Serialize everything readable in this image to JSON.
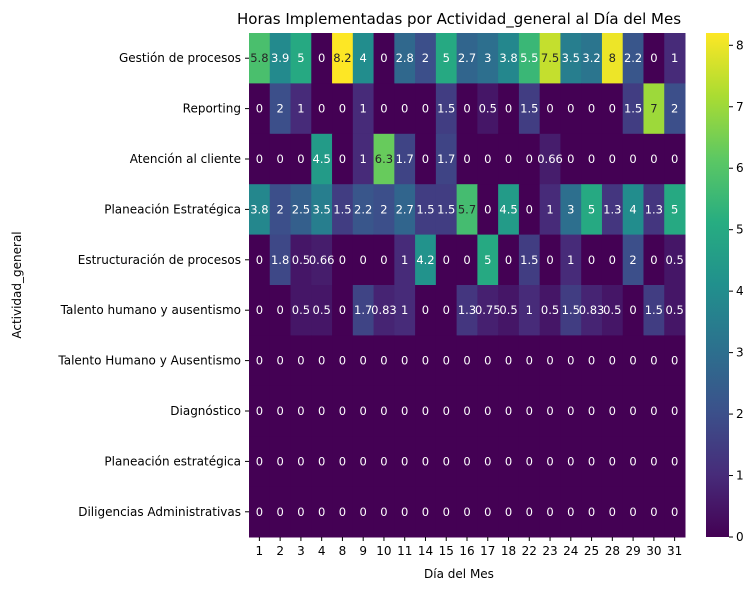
{
  "chart_data": {
    "type": "heatmap",
    "title": "Horas Implementadas por Actividad_general al Día del Mes",
    "xlabel": "Día del Mes",
    "ylabel": "Actividad_general",
    "x": [
      "1",
      "2",
      "3",
      "4",
      "8",
      "9",
      "10",
      "11",
      "14",
      "15",
      "16",
      "17",
      "18",
      "22",
      "23",
      "24",
      "25",
      "28",
      "29",
      "30",
      "31"
    ],
    "y": [
      "Gestión de procesos",
      "Reporting",
      "Atención al cliente",
      "Planeación Estratégica",
      "Estructuración de procesos",
      "Talento humano y ausentismo",
      "Talento Humano y Ausentismo",
      "Diagnóstico",
      "Planeación estratégica",
      "Diligencias Administrativas"
    ],
    "values": [
      [
        5.8,
        3.9,
        5,
        0,
        8.2,
        4,
        0,
        2.8,
        2,
        5,
        2.7,
        3,
        3.8,
        5.5,
        7.5,
        3.5,
        3.2,
        8,
        2.2,
        0,
        1
      ],
      [
        0,
        2,
        1,
        0,
        0,
        1,
        0,
        0,
        0,
        1.5,
        0,
        0.5,
        0,
        1.5,
        0,
        0,
        0,
        0,
        1.5,
        7,
        2
      ],
      [
        0,
        0,
        0,
        4.5,
        0,
        1,
        6.3,
        1.7,
        0,
        1.7,
        0,
        0,
        0,
        0,
        0.66,
        0,
        0,
        0,
        0,
        0,
        0
      ],
      [
        3.8,
        2,
        2.5,
        3.5,
        1.5,
        2.2,
        2,
        2.7,
        1.5,
        1.5,
        5.7,
        0,
        4.5,
        0,
        1,
        3,
        5,
        1.3,
        4,
        1.3,
        5
      ],
      [
        0,
        1.8,
        0.5,
        0.66,
        0,
        0,
        0,
        1,
        4.2,
        0,
        0,
        5,
        0,
        1.5,
        0,
        1,
        0,
        0,
        2,
        0,
        0.5
      ],
      [
        0,
        0,
        0.5,
        0.5,
        0,
        1.7,
        0.83,
        1,
        0,
        0,
        1.3,
        0.75,
        0.5,
        1,
        0.5,
        1.5,
        0.83,
        0.5,
        0,
        1.5,
        0.5
      ],
      [
        0,
        0,
        0,
        0,
        0,
        0,
        0,
        0,
        0,
        0,
        0,
        0,
        0,
        0,
        0,
        0,
        0,
        0,
        0,
        0,
        0
      ],
      [
        0,
        0,
        0,
        0,
        0,
        0,
        0,
        0,
        0,
        0,
        0,
        0,
        0,
        0,
        0,
        0,
        0,
        0,
        0,
        0,
        0
      ],
      [
        0,
        0,
        0,
        0,
        0,
        0,
        0,
        0,
        0,
        0,
        0,
        0,
        0,
        0,
        0,
        0,
        0,
        0,
        0,
        0,
        0
      ],
      [
        0,
        0,
        0,
        0,
        0,
        0,
        0,
        0,
        0,
        0,
        0,
        0,
        0,
        0,
        0,
        0,
        0,
        0,
        0,
        0,
        0
      ]
    ],
    "vmin": 0,
    "vmax": 8.2,
    "colormap": "viridis",
    "colorbar_ticks": [
      "0",
      "1",
      "2",
      "3",
      "4",
      "5",
      "6",
      "7",
      "8"
    ],
    "legend": "colorbar-right",
    "grid": false
  }
}
